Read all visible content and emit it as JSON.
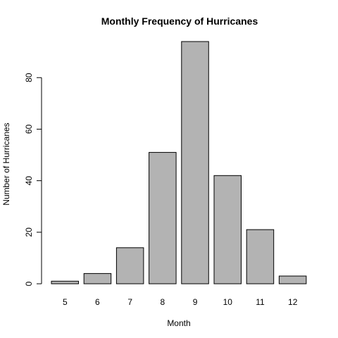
{
  "chart_data": {
    "type": "bar",
    "title": "Monthly Frequency of Hurricanes",
    "xlabel": "Month",
    "ylabel": "Number of Hurricanes",
    "categories": [
      "5",
      "6",
      "7",
      "8",
      "9",
      "10",
      "11",
      "12"
    ],
    "values": [
      1,
      4,
      14,
      51,
      94,
      42,
      21,
      3
    ],
    "yticks": [
      0,
      20,
      40,
      60,
      80
    ],
    "ylim": [
      0,
      94
    ],
    "bar_color": "#b3b3b3",
    "grid": false,
    "legend": "none"
  }
}
